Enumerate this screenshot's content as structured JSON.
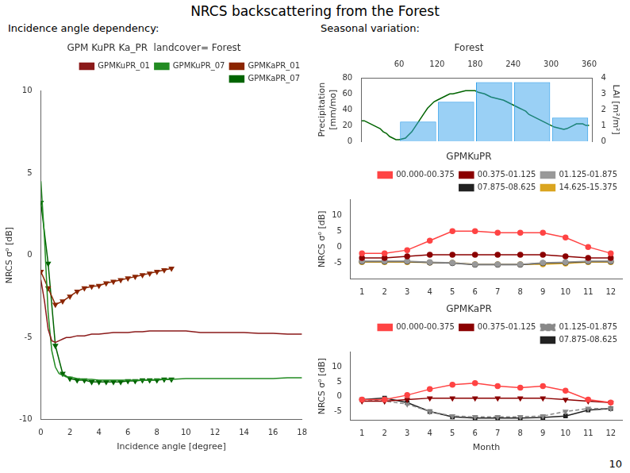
{
  "title": "NRCS backscattering from the Forest",
  "annotations": [
    "10"
  ],
  "chart_data": [
    {
      "type": "line",
      "subtitle": "Incidence angle dependency:",
      "title": "GPM KuPR Ka_PR  landcover= Forest",
      "xlabel": "Incidence angle [degree]",
      "ylabel": "NRCS σ⁰ [dB]",
      "xlim": [
        0,
        18
      ],
      "ylim": [
        -10,
        10
      ],
      "xticks": [
        0,
        2,
        4,
        6,
        8,
        10,
        12,
        14,
        16,
        18
      ],
      "yticks": [
        -10,
        -5,
        0,
        5,
        10
      ],
      "grid": false,
      "legend": "upper right",
      "series": [
        {
          "name": "GPMKuPR_01",
          "color": "#8B1A1A",
          "x": [
            0.0,
            0.25,
            0.5,
            0.75,
            1.0,
            1.25,
            1.5,
            1.75,
            2.0,
            2.5,
            3.0,
            3.5,
            4.0,
            4.5,
            5.0,
            5.5,
            6.0,
            6.5,
            7.0,
            7.5,
            8.0,
            8.5,
            9.0,
            10.0,
            11.0,
            12.0,
            13.0,
            14.0,
            15.0,
            16.0,
            17.0,
            18.0
          ],
          "values": [
            -1.5,
            -2.8,
            -4.5,
            -5.2,
            -5.3,
            -5.2,
            -5.1,
            -5.0,
            -5.0,
            -4.9,
            -4.9,
            -4.8,
            -4.8,
            -4.75,
            -4.7,
            -4.7,
            -4.7,
            -4.65,
            -4.65,
            -4.6,
            -4.6,
            -4.6,
            -4.6,
            -4.6,
            -4.7,
            -4.7,
            -4.7,
            -4.7,
            -4.75,
            -4.75,
            -4.8,
            -4.8
          ]
        },
        {
          "name": "GPMKuPR_07",
          "color": "#228B22",
          "x": [
            0.0,
            0.25,
            0.5,
            0.75,
            1.0,
            1.25,
            1.5,
            1.75,
            2.0,
            2.5,
            3.0,
            3.5,
            4.0,
            4.5,
            5.0,
            5.5,
            6.0,
            6.5,
            7.0,
            7.5,
            8.0,
            8.5,
            9.0,
            10.0,
            11.0,
            12.0,
            13.0,
            14.0,
            15.0,
            16.0,
            17.0,
            18.0
          ],
          "values": [
            4.5,
            1.0,
            -3.5,
            -5.8,
            -6.8,
            -7.2,
            -7.3,
            -7.4,
            -7.4,
            -7.5,
            -7.55,
            -7.55,
            -7.6,
            -7.6,
            -7.6,
            -7.6,
            -7.6,
            -7.6,
            -7.6,
            -7.6,
            -7.55,
            -7.55,
            -7.55,
            -7.5,
            -7.5,
            -7.5,
            -7.5,
            -7.5,
            -7.5,
            -7.5,
            -7.45,
            -7.45
          ]
        },
        {
          "name": "GPMKaPR_01",
          "color": "#8B2500",
          "marker": "triangle_down",
          "x": [
            0.0,
            0.5,
            1.0,
            1.5,
            2.0,
            2.5,
            3.0,
            3.5,
            4.0,
            4.5,
            5.0,
            5.5,
            6.0,
            6.5,
            7.0,
            7.5,
            8.0,
            8.5,
            9.0
          ],
          "values": [
            -1.0,
            -2.0,
            -3.0,
            -2.8,
            -2.5,
            -2.2,
            -2.0,
            -1.9,
            -1.85,
            -1.7,
            -1.6,
            -1.5,
            -1.4,
            -1.3,
            -1.2,
            -1.1,
            -1.0,
            -0.9,
            -0.8
          ]
        },
        {
          "name": "GPMKaPR_07",
          "color": "#006400",
          "marker": "triangle_down",
          "x": [
            0.0,
            0.5,
            1.0,
            1.5,
            2.0,
            2.5,
            3.0,
            3.5,
            4.0,
            4.5,
            5.0,
            5.5,
            6.0,
            6.5,
            7.0,
            7.5,
            8.0,
            8.5,
            9.0
          ],
          "values": [
            3.2,
            -0.5,
            -5.5,
            -7.2,
            -7.5,
            -7.6,
            -7.6,
            -7.7,
            -7.7,
            -7.7,
            -7.7,
            -7.7,
            -7.65,
            -7.65,
            -7.6,
            -7.6,
            -7.6,
            -7.55,
            -7.55
          ]
        }
      ]
    },
    {
      "type": "bar",
      "subtitle": "Seasonal variation:",
      "title": "Forest",
      "ylabel": "Precipitation\n[mm/mo]",
      "y2label": "LAI [m²/m²]",
      "xlim": [
        0,
        365
      ],
      "xticks": [
        60,
        120,
        180,
        240,
        300,
        360
      ],
      "ylim": [
        0,
        80
      ],
      "yticks": [
        0,
        20,
        40,
        60,
        80
      ],
      "y2lim": [
        0,
        4
      ],
      "y2ticks": [
        0,
        1,
        2,
        3,
        4
      ],
      "grid": false,
      "series": [
        {
          "type": "bar",
          "x": [
            30,
            90,
            150,
            210,
            270,
            330
          ],
          "values": [
            0,
            25,
            50,
            75,
            75,
            30
          ]
        },
        {
          "type": "line",
          "axis": "y2",
          "color": "#006400",
          "x": [
            1,
            5,
            10,
            15,
            20,
            25,
            30,
            35,
            40,
            45,
            50,
            55,
            60,
            65,
            70,
            75,
            80,
            85,
            90,
            95,
            100,
            105,
            110,
            115,
            120,
            125,
            130,
            135,
            140,
            145,
            150,
            155,
            160,
            165,
            170,
            175,
            180,
            185,
            190,
            195,
            200,
            205,
            210,
            215,
            220,
            225,
            230,
            235,
            240,
            245,
            250,
            255,
            260,
            265,
            270,
            275,
            280,
            285,
            290,
            295,
            300,
            305,
            310,
            315,
            320,
            325,
            330,
            335,
            340,
            345,
            350,
            355,
            360
          ],
          "values": [
            1.3,
            1.3,
            1.2,
            1.1,
            1.0,
            0.9,
            0.8,
            0.6,
            0.5,
            0.3,
            0.2,
            0.1,
            0.1,
            0.15,
            0.2,
            0.4,
            0.6,
            0.9,
            1.2,
            1.5,
            1.8,
            2.1,
            2.3,
            2.5,
            2.6,
            2.7,
            2.8,
            2.9,
            3.0,
            3.0,
            3.05,
            3.1,
            3.15,
            3.2,
            3.2,
            3.2,
            3.2,
            3.1,
            3.05,
            3.0,
            2.9,
            2.8,
            2.75,
            2.7,
            2.65,
            2.6,
            2.5,
            2.4,
            2.3,
            2.2,
            2.1,
            2.0,
            1.9,
            1.7,
            1.6,
            1.5,
            1.4,
            1.3,
            1.2,
            1.1,
            1.0,
            0.9,
            0.85,
            0.8,
            0.75,
            0.8,
            0.9,
            1.0,
            1.1,
            1.1,
            1.1,
            1.0,
            1.0
          ]
        }
      ]
    },
    {
      "type": "line",
      "title": "GPMKuPR",
      "ylabel": "NRCS σ⁰ [dB]",
      "x": [
        1,
        2,
        3,
        4,
        5,
        6,
        7,
        8,
        9,
        10,
        11,
        12
      ],
      "xlim": [
        0.5,
        12.5
      ],
      "xticks": [
        1,
        2,
        3,
        4,
        5,
        6,
        7,
        8,
        9,
        10,
        11,
        12
      ],
      "ylim": [
        -10,
        15
      ],
      "yticks": [
        -5,
        0,
        5,
        10
      ],
      "grid": false,
      "legend": "upper right",
      "series": [
        {
          "name": "00.000-00.375",
          "color": "#FF4444",
          "marker": "circle",
          "values": [
            -2.0,
            -2.0,
            -1.0,
            2.0,
            5.0,
            5.0,
            4.5,
            4.5,
            4.5,
            3.0,
            0.0,
            -2.0
          ]
        },
        {
          "name": "00.375-01.125",
          "color": "#8B0000",
          "marker": "circle",
          "values": [
            -3.5,
            -3.5,
            -3.0,
            -2.5,
            -2.5,
            -2.5,
            -2.5,
            -2.5,
            -2.5,
            -3.0,
            -3.5,
            -3.5
          ]
        },
        {
          "name": "01.125-01.875",
          "color": "#999999",
          "marker": "circle",
          "values": [
            -4.5,
            -4.5,
            -4.5,
            -4.8,
            -5.0,
            -5.5,
            -5.5,
            -5.5,
            -5.0,
            -4.8,
            -4.5,
            -4.5
          ]
        },
        {
          "name": "07.875-08.625",
          "color": "#222222",
          "marker": "circle",
          "values": [
            -4.6,
            -4.6,
            -4.6,
            -4.9,
            -5.1,
            -5.6,
            -5.6,
            -5.6,
            -5.1,
            -4.9,
            -4.6,
            -4.6
          ]
        },
        {
          "name": "14.625-15.375",
          "color": "#DAA520",
          "marker": "circle",
          "values": [
            -4.8,
            -4.8,
            -4.8,
            -4.9,
            -5.0,
            -5.5,
            -5.5,
            -5.5,
            -5.5,
            -5.2,
            -4.8,
            -4.8
          ]
        }
      ]
    },
    {
      "type": "line",
      "title": "GPMKaPR",
      "xlabel": "Month",
      "ylabel": "NRCS σ⁰ [dB]",
      "x": [
        1,
        2,
        3,
        4,
        5,
        6,
        7,
        8,
        9,
        10,
        11,
        12
      ],
      "xlim": [
        0.5,
        12.5
      ],
      "xticks": [
        1,
        2,
        3,
        4,
        5,
        6,
        7,
        8,
        9,
        10,
        11,
        12
      ],
      "ylim": [
        -8,
        15
      ],
      "yticks": [
        -5,
        0,
        5,
        10
      ],
      "grid": false,
      "legend": "upper right",
      "series": [
        {
          "name": "00.000-00.375",
          "color": "#FF4444",
          "marker": "circle",
          "values": [
            -1.0,
            -1.0,
            0.5,
            2.5,
            4.0,
            4.5,
            3.5,
            3.0,
            3.5,
            2.0,
            -1.0,
            -2.0
          ]
        },
        {
          "name": "00.375-01.125",
          "color": "#8B0000",
          "marker": "triangle_down",
          "values": [
            -1.5,
            -1.5,
            -1.0,
            -0.5,
            -0.5,
            -0.5,
            -0.5,
            -0.5,
            -0.5,
            -1.0,
            -1.5,
            -2.0
          ]
        },
        {
          "name": "01.125-01.875",
          "color": "#888888",
          "marker": "triangle_down",
          "line_style": "dashed",
          "values": [
            -1.0,
            -1.5,
            -2.5,
            -5.0,
            -6.5,
            -6.8,
            -6.8,
            -6.8,
            -6.5,
            -5.0,
            -4.0,
            -4.0
          ]
        },
        {
          "name": "07.875-08.625",
          "color": "#222222",
          "marker": "square",
          "values": [
            -1.0,
            -0.5,
            -2.0,
            -5.0,
            -6.8,
            -7.2,
            -7.2,
            -7.2,
            -7.0,
            -6.5,
            -4.5,
            -4.0
          ]
        }
      ]
    }
  ]
}
